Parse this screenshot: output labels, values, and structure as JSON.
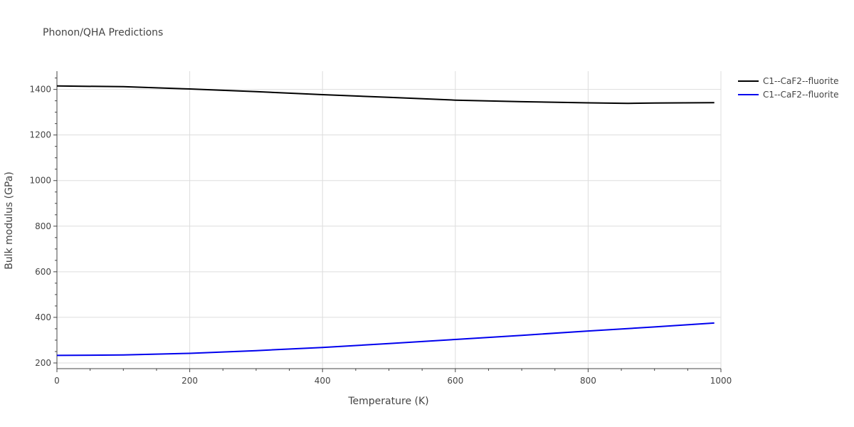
{
  "chart_data": {
    "type": "line",
    "title": "Phonon/QHA Predictions",
    "xlabel": "Temperature (K)",
    "ylabel": "Bulk modulus (GPa)",
    "xlim": [
      0,
      1000
    ],
    "ylim": [
      175,
      1480
    ],
    "x_ticks": [
      0,
      200,
      400,
      600,
      800,
      1000
    ],
    "y_ticks": [
      200,
      400,
      600,
      800,
      1000,
      1200,
      1400
    ],
    "grid": true,
    "legend_position": "top-right",
    "series": [
      {
        "name": "C1--CaF2--fluorite",
        "color": "#000000",
        "x": [
          0,
          100,
          200,
          300,
          400,
          500,
          600,
          700,
          800,
          860,
          900,
          990
        ],
        "y": [
          1415,
          1412,
          1402,
          1390,
          1377,
          1365,
          1353,
          1346,
          1341,
          1339,
          1340,
          1342
        ]
      },
      {
        "name": "C1--CaF2--fluorite",
        "color": "#0000ee",
        "x": [
          0,
          100,
          200,
          300,
          400,
          500,
          600,
          700,
          800,
          900,
          990
        ],
        "y": [
          233,
          235,
          242,
          254,
          268,
          285,
          303,
          321,
          340,
          358,
          375
        ]
      }
    ]
  }
}
